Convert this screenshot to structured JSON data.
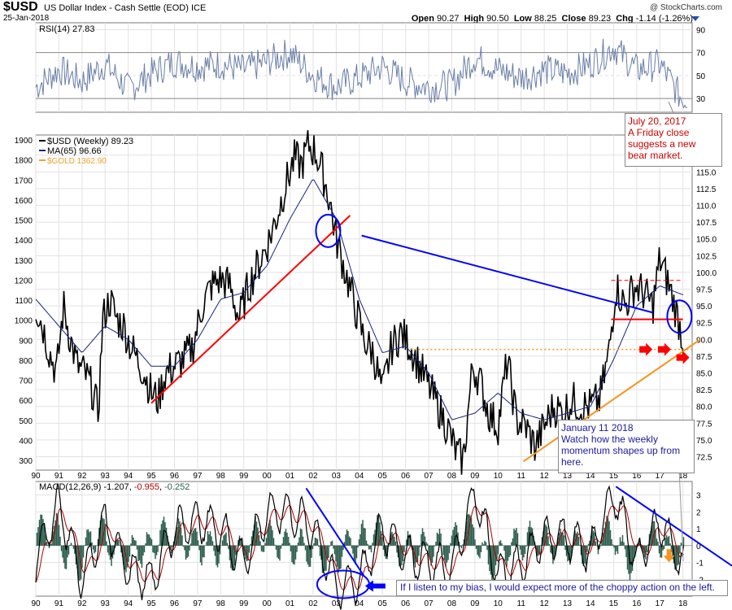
{
  "header": {
    "symbol": "$USD",
    "name": "US Dollar Index - Cash Settle (EOD)",
    "exchange": "ICE",
    "date": "25-Jan-2018",
    "watermark": "@ StockCharts.com",
    "open_label": "Open",
    "open": "90.27",
    "high_label": "High",
    "high": "90.50",
    "low_label": "Low",
    "low": "88.25",
    "close_label": "Close",
    "close": "89.23",
    "chg_label": "Chg",
    "chg": "-1.14 (-1.26%)"
  },
  "colors": {
    "price": "#000000",
    "ma": "#1a237e",
    "gold": "#f0a030",
    "rsi": "#6a7ea8",
    "macd": "#000000",
    "signal": "#b00000",
    "hist": "#2e5e4e",
    "red": "#ff0000",
    "blue": "#0000ff",
    "orange": "#f7931e"
  },
  "chart_data": [
    {
      "type": "line",
      "panel": "rsi",
      "legend": "RSI(14) 27.83",
      "y_ticks": [
        30,
        50,
        70,
        90
      ],
      "ylim": [
        18,
        96
      ],
      "overbought": 70,
      "oversold": 30,
      "series": [
        {
          "name": "RSI(14)",
          "x": [
            1990,
            1991,
            1992,
            1993,
            1994,
            1995,
            1996,
            1997,
            1998,
            1999,
            2000,
            2001,
            2002,
            2003,
            2004,
            2005,
            2006,
            2007,
            2008,
            2009,
            2010,
            2011,
            2012,
            2013,
            2014,
            2015,
            2016,
            2017,
            2018
          ],
          "values": [
            40,
            55,
            45,
            60,
            38,
            52,
            62,
            58,
            60,
            55,
            62,
            70,
            50,
            40,
            48,
            58,
            45,
            40,
            42,
            66,
            55,
            48,
            55,
            52,
            60,
            75,
            55,
            60,
            28
          ]
        }
      ]
    },
    {
      "type": "line",
      "panel": "price",
      "legends": [
        "$USD (Weekly) 89.23",
        "MA(65) 96.66",
        "$GOLD 1362.90"
      ],
      "x_ticks": [
        "90",
        "91",
        "92",
        "93",
        "94",
        "95",
        "96",
        "97",
        "98",
        "99",
        "00",
        "01",
        "02",
        "03",
        "04",
        "05",
        "06",
        "07",
        "08",
        "09",
        "10",
        "11",
        "12",
        "13",
        "14",
        "15",
        "16",
        "17",
        "18"
      ],
      "y_right_ticks": [
        72.5,
        75.0,
        77.5,
        80.0,
        82.5,
        85.0,
        87.5,
        90.0,
        92.5,
        95.0,
        97.5,
        100.0,
        102.5,
        105.0,
        107.5,
        110.0,
        112.5,
        115.0,
        117.5
      ],
      "y_left_ticks": [
        300,
        400,
        500,
        600,
        700,
        800,
        900,
        1000,
        1100,
        1200,
        1300,
        1400,
        1500,
        1600,
        1700,
        1800,
        1900
      ],
      "ylim": [
        70.5,
        120.5
      ],
      "series": [
        {
          "name": "$USD (Weekly)",
          "x": [
            1990.0,
            1990.3,
            1990.6,
            1990.9,
            1991.2,
            1991.5,
            1991.8,
            1992.1,
            1992.4,
            1992.7,
            1992.9,
            1993.2,
            1993.5,
            1993.8,
            1994.1,
            1994.4,
            1994.7,
            1995.0,
            1995.3,
            1995.6,
            1996.0,
            1996.4,
            1996.8,
            1997.2,
            1997.6,
            1998.0,
            1998.4,
            1998.8,
            1999.2,
            1999.6,
            2000.0,
            2000.4,
            2000.8,
            2001.2,
            2001.5,
            2001.8,
            2002.1,
            2002.4,
            2002.7,
            2003.0,
            2003.4,
            2003.8,
            2004.2,
            2004.6,
            2005.0,
            2005.4,
            2005.8,
            2006.2,
            2006.6,
            2007.0,
            2007.4,
            2007.8,
            2008.2,
            2008.5,
            2008.9,
            2009.2,
            2009.6,
            2010.0,
            2010.4,
            2010.8,
            2011.2,
            2011.6,
            2012.0,
            2012.4,
            2012.8,
            2013.2,
            2013.6,
            2014.0,
            2014.4,
            2014.8,
            2015.1,
            2015.5,
            2015.9,
            2016.3,
            2016.7,
            2017.0,
            2017.4,
            2017.8,
            2018.05
          ],
          "values": [
            95,
            92,
            88,
            85,
            95,
            90,
            86,
            85,
            83,
            79,
            93,
            96,
            93,
            92,
            89,
            87,
            85,
            82,
            81,
            85,
            86,
            87,
            89,
            95,
            98,
            99,
            98,
            93,
            98,
            101,
            104,
            108,
            113,
            117,
            116,
            119,
            118,
            115,
            111,
            105,
            100,
            95,
            90,
            88,
            82,
            89,
            91,
            89,
            86,
            83,
            80,
            77,
            73,
            72,
            86,
            84,
            79,
            77,
            87,
            78,
            77,
            74,
            77,
            80,
            79,
            81,
            80,
            80,
            81,
            88,
            98,
            95,
            98,
            97,
            95,
            102,
            98,
            93,
            89.23
          ]
        },
        {
          "name": "MA(65)",
          "x": [
            1990.0,
            1991.0,
            1992.0,
            1993.0,
            1994.0,
            1995.0,
            1996.0,
            1997.0,
            1998.0,
            1999.0,
            2000.0,
            2001.0,
            2002.0,
            2003.0,
            2004.0,
            2005.0,
            2006.0,
            2007.0,
            2008.0,
            2009.0,
            2010.0,
            2011.0,
            2012.0,
            2013.0,
            2014.0,
            2015.0,
            2016.0,
            2017.0,
            2018.0
          ],
          "values": [
            96,
            92,
            88,
            92,
            90,
            86,
            86,
            90,
            96,
            97,
            101,
            108,
            114,
            108,
            96,
            88,
            89,
            85,
            78,
            79,
            82,
            79,
            78,
            79,
            80,
            87,
            95,
            98,
            96.66
          ]
        }
      ],
      "annotations": {
        "support_line_1": "red, 1995 -> 2003",
        "resistance_line_blue": "blue, 2004 -> 2016.7",
        "support_line_2": "orange, 2011 -> 2018",
        "horizontal_dotted": "orange dotted at 88.5 from 2006"
      }
    },
    {
      "type": "line",
      "panel": "macd",
      "legend_prefix": "MACD(12,26,9)",
      "legend_values": [
        "-1.207",
        "-0.955",
        "-0.252"
      ],
      "y_ticks": [
        -2,
        -1,
        0,
        1,
        2,
        3
      ],
      "ylim": [
        -3,
        3.8
      ],
      "series": [
        {
          "name": "MACD",
          "x": [
            1990,
            1991,
            1992,
            1993,
            1994,
            1995,
            1996,
            1997,
            1998,
            1999,
            2000,
            2001,
            2002,
            2003,
            2004,
            2005,
            2006,
            2007,
            2008,
            2009,
            2010,
            2011,
            2012,
            2013,
            2014,
            2015,
            2016,
            2017,
            2018
          ],
          "values": [
            -1,
            2.5,
            -2,
            1.5,
            -1.5,
            -2,
            1,
            1.5,
            1,
            -1,
            2,
            2,
            1,
            -2.5,
            -2,
            1,
            -0.5,
            -1,
            -1.5,
            3.2,
            -1.8,
            -1,
            0.5,
            0.5,
            -0.5,
            3.2,
            -1,
            1.5,
            -1.207
          ]
        }
      ]
    }
  ],
  "notes": {
    "rsi_note": "July 20, 2017\nA Friday close\nsuggests a new\nbear market.",
    "price_note": "January 11 2018\nWatch how the weekly\nmomentum shapes up from\nhere.",
    "macd_note": "If I listen to my bias, I would expect more of the choppy action on the left."
  }
}
